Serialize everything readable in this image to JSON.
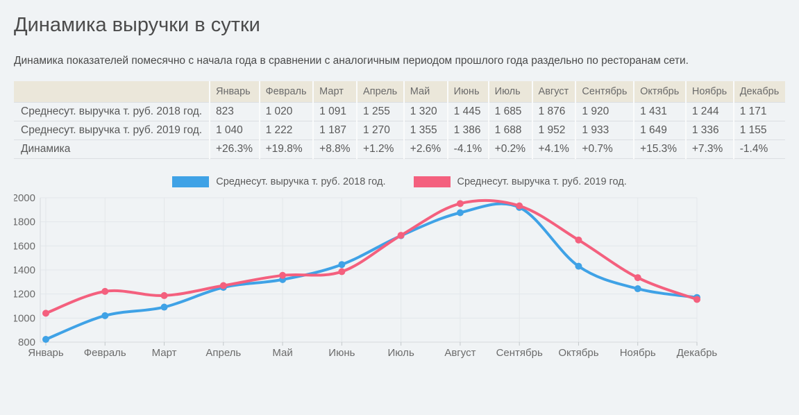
{
  "page": {
    "title": "Динамика выручки в сутки",
    "subtitle": "Динамика показателей помесячно с начала года в сравнении с аналогичным периодом прошлого года раздельно по ресторанам сети."
  },
  "months": [
    "Январь",
    "Февраль",
    "Март",
    "Апрель",
    "Май",
    "Июнь",
    "Июль",
    "Август",
    "Сентябрь",
    "Октябрь",
    "Ноябрь",
    "Декабрь"
  ],
  "table": {
    "rows": [
      {
        "label": "Среднесут. выручка т. руб. 2018 год.",
        "type": "number",
        "values": [
          "823",
          "1 020",
          "1 091",
          "1 255",
          "1 320",
          "1 445",
          "1 685",
          "1 876",
          "1 920",
          "1 431",
          "1 244",
          "1 171"
        ]
      },
      {
        "label": "Среднесут. выручка т. руб. 2019 год.",
        "type": "number",
        "values": [
          "1 040",
          "1 222",
          "1 187",
          "1 270",
          "1 355",
          "1 386",
          "1 688",
          "1 952",
          "1 933",
          "1 649",
          "1 336",
          "1 155"
        ]
      },
      {
        "label": "Динамика",
        "type": "percent",
        "values": [
          "+26.3%",
          "+19.8%",
          "+8.8%",
          "+1.2%",
          "+2.6%",
          "-4.1%",
          "+0.2%",
          "+4.1%",
          "+0.7%",
          "+15.3%",
          "+7.3%",
          "-1.4%"
        ]
      }
    ]
  },
  "chart_data": {
    "type": "line",
    "title": "",
    "categories": [
      "Январь",
      "Февраль",
      "Март",
      "Апрель",
      "Май",
      "Июнь",
      "Июль",
      "Август",
      "Сентябрь",
      "Октябрь",
      "Ноябрь",
      "Декабрь"
    ],
    "series": [
      {
        "name": "Среднесут. выручка т. руб. 2018 год.",
        "color": "#3fa2e6",
        "values": [
          823,
          1020,
          1091,
          1255,
          1320,
          1445,
          1685,
          1876,
          1920,
          1431,
          1244,
          1171
        ]
      },
      {
        "name": "Среднесут. выручка т. руб. 2019 год.",
        "color": "#f4607e",
        "values": [
          1040,
          1222,
          1187,
          1270,
          1355,
          1386,
          1688,
          1952,
          1933,
          1649,
          1336,
          1155
        ]
      }
    ],
    "ylim": [
      800,
      2000
    ],
    "ytick_step": 200,
    "grid": true,
    "legend_position": "top",
    "smooth": true
  },
  "colors": {
    "positive": "#55a555",
    "negative": "#cc4a3b",
    "grid": "#e3e7ea",
    "axis": "#d6dadd",
    "tick": "#c2c7ca",
    "axis_text": "#6b6b6b",
    "header_bg": "#ebe7da",
    "page_bg": "#f0f3f5"
  }
}
